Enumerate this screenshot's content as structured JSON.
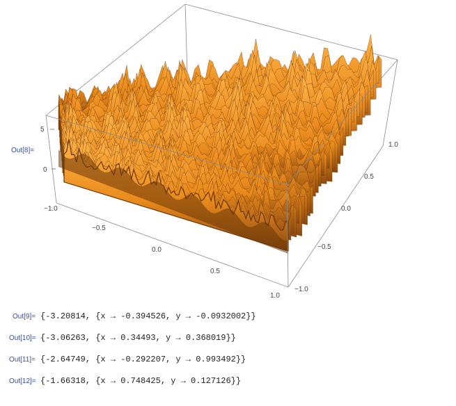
{
  "notebook": {
    "plot_cell": {
      "label": "Out[8]="
    },
    "outputs": [
      {
        "label": "Out[9]=",
        "text": "{-3.20814, {x → -0.394526, y → -0.0932002}}"
      },
      {
        "label": "Out[10]=",
        "text": "{-3.06263, {x → 0.34493, y → 0.368019}}"
      },
      {
        "label": "Out[11]=",
        "text": "{-2.64749, {x → -0.292207, y → 0.993492}}"
      },
      {
        "label": "Out[12]=",
        "text": "{-1.66318, {x → 0.748425, y → 0.127126}}"
      }
    ]
  },
  "plot": {
    "z_ticks": [
      "5",
      "0"
    ],
    "x_ticks": [
      "−1.0",
      "−0.5",
      "0.0",
      "0.5",
      "1.0"
    ],
    "y_ticks": [
      "1.0",
      "0.5",
      "0.0",
      "−0.5",
      "−1.0"
    ],
    "surface_color": "#f0921e",
    "surface_dark": "#6a3608",
    "box_color": "#8a8a8a"
  }
}
